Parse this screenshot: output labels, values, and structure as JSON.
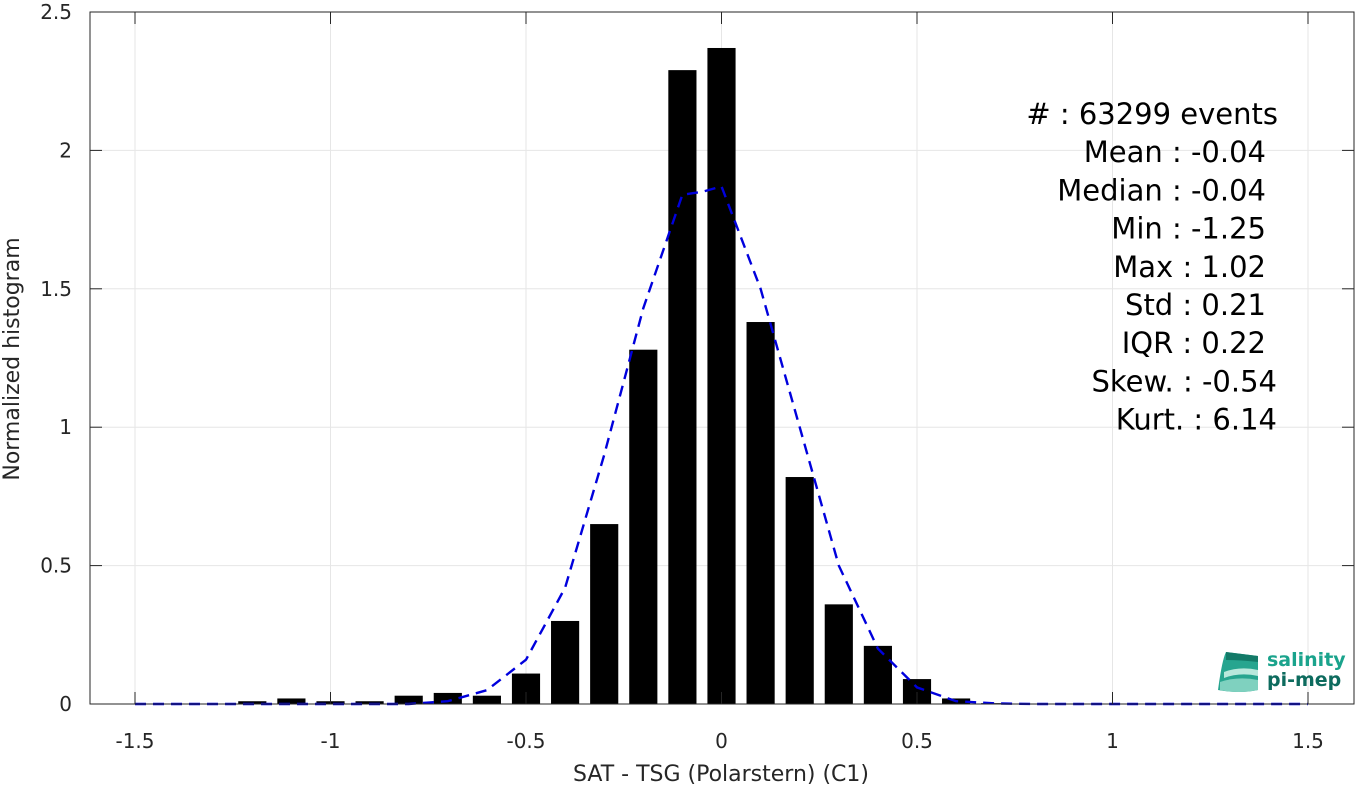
{
  "chart_data": {
    "type": "bar",
    "xlabel": "SAT - TSG (Polarstern) (C1)",
    "ylabel": "Normalized histogram",
    "xlim": [
      -1.5,
      1.5
    ],
    "ylim": [
      0,
      2.5
    ],
    "grid": true,
    "xticks": [
      -1.5,
      -1,
      -0.5,
      0,
      0.5,
      1,
      1.5
    ],
    "xtick_labels": [
      "-1.5",
      "-1",
      "-0.5",
      "0",
      "0.5",
      "1",
      "1.5"
    ],
    "yticks": [
      0,
      0.5,
      1,
      1.5,
      2,
      2.5
    ],
    "ytick_labels": [
      "0",
      "0.5",
      "1",
      "1.5",
      "2",
      "2.5"
    ],
    "bars": {
      "bin_width": 0.1,
      "color": "#000000",
      "x": [
        -1.5,
        -1.4,
        -1.3,
        -1.2,
        -1.1,
        -1.0,
        -0.9,
        -0.8,
        -0.7,
        -0.6,
        -0.5,
        -0.4,
        -0.3,
        -0.2,
        -0.1,
        0.0,
        0.1,
        0.2,
        0.3,
        0.4,
        0.5,
        0.6,
        0.7,
        0.8,
        0.9,
        1.0,
        1.1,
        1.2,
        1.3,
        1.4,
        1.5
      ],
      "values": [
        0,
        0,
        0,
        0.01,
        0.02,
        0.01,
        0.01,
        0.03,
        0.04,
        0.03,
        0.11,
        0.3,
        0.65,
        1.28,
        2.29,
        2.37,
        1.38,
        0.82,
        0.36,
        0.21,
        0.09,
        0.02,
        0.003,
        0.001,
        0,
        0,
        0,
        0,
        0,
        0,
        0
      ]
    },
    "fit_curve": {
      "style": "dashed",
      "color": "#0000dd",
      "x": [
        -1.5,
        -1.4,
        -1.3,
        -1.2,
        -1.1,
        -1.0,
        -0.9,
        -0.8,
        -0.7,
        -0.6,
        -0.5,
        -0.4,
        -0.3,
        -0.2,
        -0.1,
        -0.05,
        0.0,
        0.1,
        0.2,
        0.3,
        0.4,
        0.5,
        0.6,
        0.7,
        0.8,
        0.9,
        1.0,
        1.1,
        1.2,
        1.3,
        1.4,
        1.5
      ],
      "y": [
        0,
        0,
        0,
        0,
        0,
        0,
        0,
        0,
        0.01,
        0.05,
        0.16,
        0.42,
        0.9,
        1.43,
        1.84,
        1.85,
        1.87,
        1.5,
        1.0,
        0.5,
        0.2,
        0.06,
        0.01,
        0.002,
        0,
        0,
        0,
        0,
        0,
        0,
        0,
        0
      ]
    }
  },
  "stats": {
    "lines": [
      "#  : 63299 events",
      "Mean : -0.04",
      "Median : -0.04",
      "Min : -1.25",
      "Max : 1.02",
      "Std : 0.21",
      "IQR : 0.22",
      "Skew. : -0.54",
      "Kurt. : 6.14"
    ],
    "align": [
      "right",
      "right",
      "right",
      "right",
      "right",
      "right",
      "right",
      "right",
      "right"
    ]
  },
  "logo": {
    "line1": "salinity",
    "line2": "pi-mep",
    "color_line1": "#1aa38c",
    "color_line2": "#0d6b5e"
  },
  "colors": {
    "axis": "#262626",
    "grid": "#e6e6e6",
    "bar": "#000000",
    "curve": "#0000dd"
  }
}
